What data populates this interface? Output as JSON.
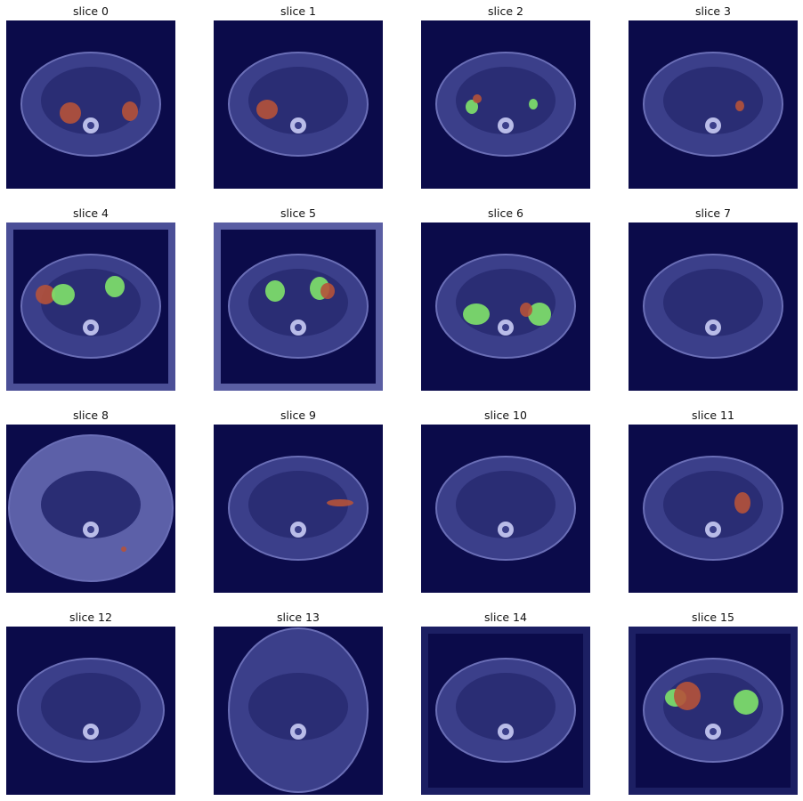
{
  "figure": {
    "panels": [
      {
        "title": "slice 0",
        "overlays": [
          "tumor-red",
          "tumor-red"
        ]
      },
      {
        "title": "slice 1",
        "overlays": [
          "tumor-red"
        ]
      },
      {
        "title": "slice 2",
        "overlays": [
          "kidney-green",
          "tumor-red",
          "kidney-green"
        ]
      },
      {
        "title": "slice 3",
        "overlays": [
          "tumor-red"
        ]
      },
      {
        "title": "slice 4",
        "overlays": [
          "tumor-red",
          "kidney-green",
          "kidney-green"
        ]
      },
      {
        "title": "slice 5",
        "overlays": [
          "kidney-green",
          "kidney-green",
          "tumor-red"
        ]
      },
      {
        "title": "slice 6",
        "overlays": [
          "kidney-green",
          "kidney-green",
          "tumor-red"
        ]
      },
      {
        "title": "slice 7",
        "overlays": []
      },
      {
        "title": "slice 8",
        "overlays": [
          "tumor-red"
        ]
      },
      {
        "title": "slice 9",
        "overlays": [
          "tumor-red"
        ]
      },
      {
        "title": "slice 10",
        "overlays": []
      },
      {
        "title": "slice 11",
        "overlays": [
          "tumor-red"
        ]
      },
      {
        "title": "slice 12",
        "overlays": []
      },
      {
        "title": "slice 13",
        "overlays": []
      },
      {
        "title": "slice 14",
        "overlays": []
      },
      {
        "title": "slice 15",
        "overlays": [
          "kidney-green",
          "tumor-red",
          "kidney-green"
        ]
      }
    ]
  },
  "colors": {
    "background_navy": "#0b0b4a",
    "tissue": "#3b3f8a",
    "bone": "#b9bce8",
    "kidney_green": "#7fe36a",
    "tumor_red": "#b5523a"
  }
}
